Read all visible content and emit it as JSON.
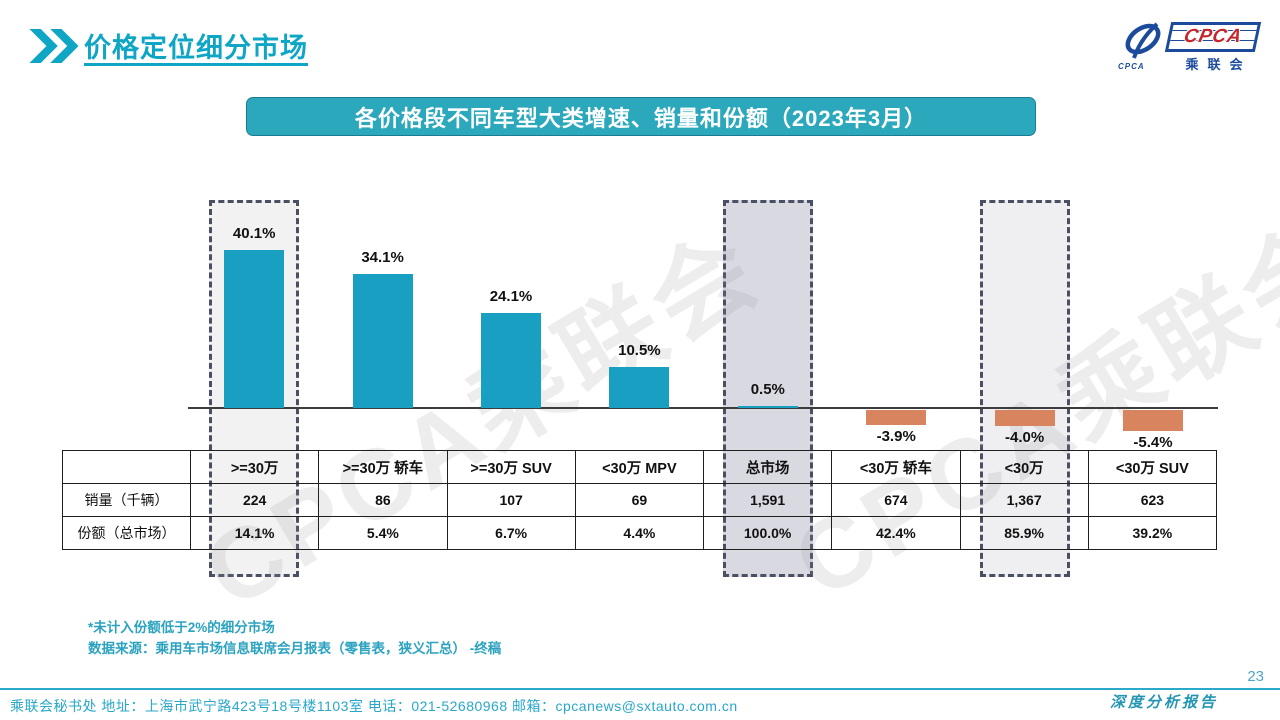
{
  "header": {
    "title": "价格定位细分市场"
  },
  "logo": {
    "emblem_caption": "CPCA",
    "box_text": "CPCA",
    "org_text": "乘联会",
    "blue": "#1C4B9C",
    "red": "#C5262C"
  },
  "banner": {
    "text": "各价格段不同车型大类增速、销量和份额（2023年3月）",
    "bg": "#2CA8BD"
  },
  "watermark": {
    "text": "CPCA乘联会"
  },
  "chart_data": {
    "type": "bar",
    "title": "各价格段不同车型大类增速、销量和份额（2023年3月）",
    "categories": [
      ">=30万",
      ">=30万 轿车",
      ">=30万 SUV",
      "<30万 MPV",
      "总市场",
      "<30万 轿车",
      "<30万",
      "<30万 SUV"
    ],
    "series": [
      {
        "name": "增速",
        "unit": "%",
        "values": [
          40.1,
          34.1,
          24.1,
          10.5,
          0.5,
          -3.9,
          -4.0,
          -5.4
        ]
      },
      {
        "name": "销量（千辆）",
        "values": [
          "224",
          "86",
          "107",
          "69",
          "1,591",
          "674",
          "1,367",
          "623"
        ]
      },
      {
        "name": "份额（总市场）",
        "values": [
          "14.1%",
          "5.4%",
          "6.7%",
          "4.4%",
          "100.0%",
          "42.4%",
          "85.9%",
          "39.2%"
        ]
      }
    ],
    "growth_labels": [
      "40.1%",
      "34.1%",
      "24.1%",
      "10.5%",
      "0.5%",
      "-3.9%",
      "-4.0%",
      "-5.4%"
    ],
    "highlighted_columns": [
      0,
      4,
      6
    ],
    "highlight_fills": [
      "#F2F2F2",
      "#D9D9E2",
      "#EFEFF1"
    ],
    "positive_color": "#199FC1",
    "negative_color": "#D8845F",
    "ylim": [
      -10,
      45
    ],
    "grid": false,
    "legend": false
  },
  "footnotes": [
    "*未计入份额低于2%的细分市场",
    "数据来源：乘用车市场信息联席会月报表（零售表，狭义汇总） -终稿"
  ],
  "footer": {
    "contact": "乘联会秘书处  地址：上海市武宁路423号18号楼1103室  电话：021-52680968  邮箱：cpcanews@sxtauto.com.cn",
    "report_label": "深度分析报告",
    "page_number": "23"
  }
}
